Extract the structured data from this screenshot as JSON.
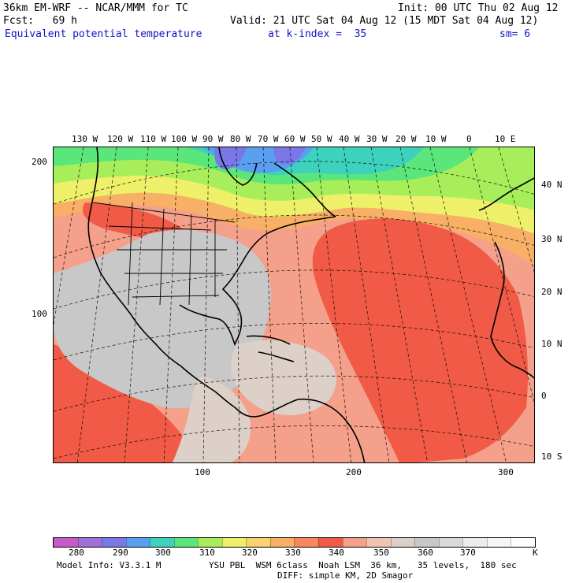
{
  "header": {
    "model_line": "36km EM-WRF -- NCAR/MMM for TC",
    "init_line": "Init: 00 UTC Thu 02 Aug 12",
    "fcst_line": "Fcst:   69 h",
    "valid_line": "Valid: 21 UTC Sat 04 Aug 12 (15 MDT Sat 04 Aug 12)",
    "field_name": "Equivalent potential temperature",
    "level_text": "at k-index =  35",
    "smooth_text": "sm= 6"
  },
  "map": {
    "lon_labels": [
      "130 W",
      "120 W",
      "110 W",
      "100 W",
      "90 W",
      "80 W",
      "70 W",
      "60 W",
      "50 W",
      "40 W",
      "30 W",
      "20 W",
      "10 W",
      "0",
      "10 E"
    ],
    "lat_labels": [
      "40 N",
      "30 N",
      "20 N",
      "10 N",
      "0",
      "10 S"
    ],
    "left_axis_labels": [
      "200",
      "100"
    ],
    "bottom_axis_labels": [
      "100",
      "200",
      "300"
    ]
  },
  "colorbar": {
    "unit": "K",
    "labels": [
      "280",
      "290",
      "300",
      "310",
      "320",
      "330",
      "340",
      "350",
      "360",
      "370"
    ],
    "colors": [
      "#c85ac8",
      "#a070d8",
      "#7a78e8",
      "#5aa0f0",
      "#3cd2be",
      "#5ae67a",
      "#a8ee5a",
      "#eef06a",
      "#fad26e",
      "#f8b066",
      "#f8885c",
      "#f05a46",
      "#f4a08a",
      "#f0c4b0",
      "#dcd0c8",
      "#c8c8c8",
      "#dadada",
      "#ececec",
      "#f6f6f6",
      "#ffffff"
    ]
  },
  "footer": {
    "model_info": "Model Info: V3.3.1 M",
    "physics_line": "YSU PBL  WSM 6class  Noah LSM  36 km,   35 levels,  180 sec",
    "diff_line": "DIFF: simple KM, 2D Smagor"
  }
}
